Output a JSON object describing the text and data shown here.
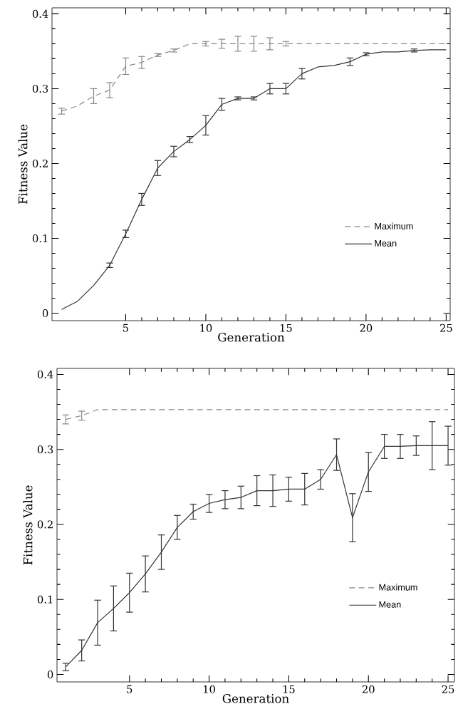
{
  "chart_data": [
    {
      "type": "line",
      "xlabel": "Generation",
      "ylabel": "Fitness Value",
      "x": [
        1,
        2,
        3,
        4,
        5,
        6,
        7,
        8,
        9,
        10,
        11,
        12,
        13,
        14,
        15,
        16,
        17,
        18,
        19,
        20,
        21,
        22,
        23,
        24,
        25
      ],
      "xlim": [
        0.4,
        25.25
      ],
      "ylim": [
        -0.01,
        0.408
      ],
      "xticks": [
        5,
        10,
        15,
        20,
        25
      ],
      "yticks": [
        0,
        0.1,
        0.2,
        0.3,
        0.4
      ],
      "legend": "bottom right",
      "series": [
        {
          "name": "Maximum",
          "color": "#888888",
          "line_style": "dashed",
          "values": [
            0.27,
            0.277,
            0.29,
            0.298,
            0.33,
            0.335,
            0.345,
            0.351,
            0.36,
            0.36,
            0.36,
            0.36,
            0.36,
            0.36,
            0.36,
            0.36,
            0.36,
            0.36,
            0.36,
            0.36,
            0.36,
            0.36,
            0.36,
            0.36,
            0.36
          ],
          "errors": [
            0.004,
            null,
            0.01,
            0.01,
            0.011,
            0.008,
            0.002,
            0.002,
            null,
            0.003,
            0.006,
            0.01,
            0.01,
            0.008,
            0.003,
            null,
            null,
            null,
            null,
            null,
            null,
            null,
            null,
            null,
            null
          ]
        },
        {
          "name": "Mean",
          "color": "#333333",
          "line_style": "solid",
          "values": [
            0.005,
            0.016,
            0.037,
            0.064,
            0.106,
            0.152,
            0.194,
            0.216,
            0.232,
            0.251,
            0.279,
            0.287,
            0.287,
            0.3,
            0.3,
            0.32,
            0.329,
            0.331,
            0.336,
            0.346,
            0.349,
            0.349,
            0.351,
            0.352,
            0.352
          ],
          "errors": [
            null,
            null,
            null,
            0.003,
            0.005,
            0.008,
            0.01,
            0.007,
            0.004,
            0.013,
            0.008,
            0.002,
            0.002,
            0.007,
            0.007,
            0.007,
            null,
            null,
            0.005,
            0.002,
            null,
            null,
            0.002,
            null,
            null
          ]
        }
      ]
    },
    {
      "type": "line",
      "xlabel": "Generation",
      "ylabel": "Fitness Value",
      "x": [
        1,
        2,
        3,
        4,
        5,
        6,
        7,
        8,
        9,
        10,
        11,
        12,
        13,
        14,
        15,
        16,
        17,
        18,
        19,
        20,
        21,
        22,
        23,
        24,
        25
      ],
      "xlim": [
        0.45,
        25.4
      ],
      "ylim": [
        -0.01,
        0.408
      ],
      "xticks": [
        5,
        10,
        15,
        20,
        25
      ],
      "yticks": [
        0,
        0.1,
        0.2,
        0.3,
        0.4
      ],
      "legend": "bottom right",
      "series": [
        {
          "name": "Maximum",
          "color": "#888888",
          "line_style": "dashed",
          "values": [
            0.34,
            0.345,
            0.353,
            0.353,
            0.353,
            0.353,
            0.353,
            0.353,
            0.353,
            0.353,
            0.353,
            0.353,
            0.353,
            0.353,
            0.353,
            0.353,
            0.353,
            0.353,
            0.353,
            0.353,
            0.353,
            0.353,
            0.353,
            0.353,
            0.353
          ],
          "errors": [
            0.006,
            0.006,
            null,
            null,
            null,
            null,
            null,
            null,
            null,
            null,
            null,
            null,
            null,
            null,
            null,
            null,
            null,
            null,
            null,
            null,
            null,
            null,
            null,
            null,
            null
          ]
        },
        {
          "name": "Mean",
          "color": "#333333",
          "line_style": "solid",
          "values": [
            0.01,
            0.032,
            0.069,
            0.088,
            0.109,
            0.134,
            0.163,
            0.196,
            0.217,
            0.228,
            0.233,
            0.236,
            0.245,
            0.245,
            0.247,
            0.247,
            0.26,
            0.293,
            0.209,
            0.27,
            0.304,
            0.304,
            0.305,
            0.305,
            0.305
          ],
          "errors": [
            0.005,
            0.014,
            0.03,
            0.03,
            0.026,
            0.024,
            0.023,
            0.016,
            0.01,
            0.012,
            0.012,
            0.015,
            0.02,
            0.021,
            0.016,
            0.021,
            0.013,
            0.021,
            0.032,
            0.026,
            0.016,
            0.016,
            0.013,
            0.032,
            0.026
          ]
        }
      ]
    }
  ]
}
